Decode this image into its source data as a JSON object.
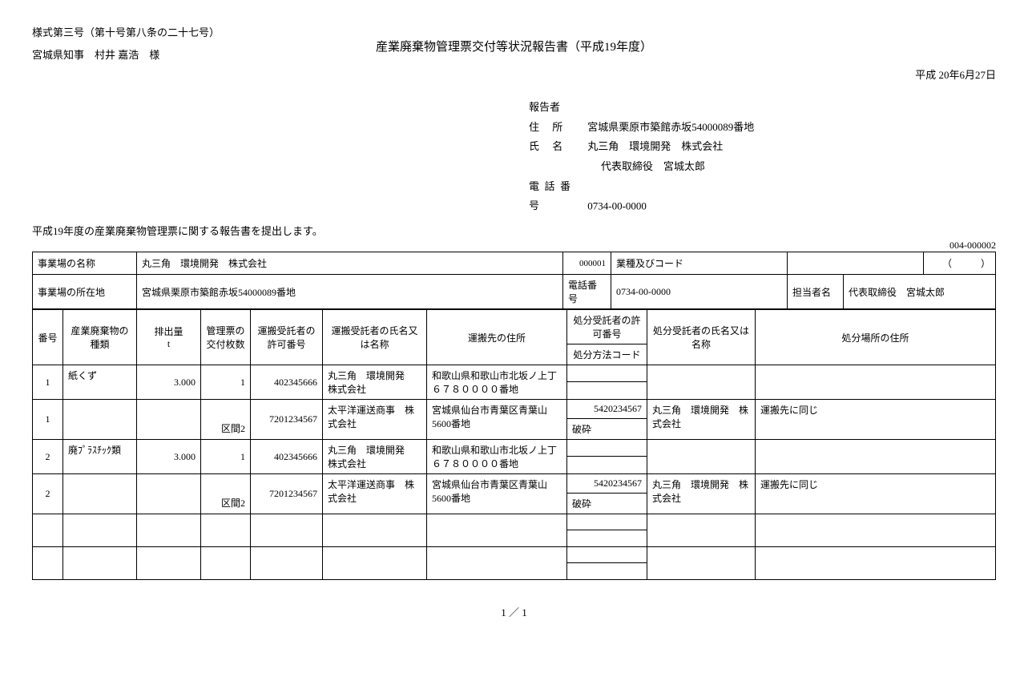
{
  "header": {
    "form_number": "様式第三号（第十号第八条の二十七号）",
    "title": "産業廃棄物管理票交付等状況報告書（平成19年度）",
    "addressee": "宮城県知事　村井 嘉浩　様",
    "date": "平成 20年6月27日"
  },
  "reporter": {
    "heading": "報告者",
    "address_label": "住 所",
    "address": "宮城県栗原市築館赤坂54000089番地",
    "name_label": "氏 名",
    "name": "丸三角　環境開発　株式会社",
    "rep_person": "代表取締役　宮城太郎",
    "tel_label": "電話番号",
    "tel": "0734-00-0000"
  },
  "statement": "平成19年度の産業廃棄物管理票に関する報告書を提出します。",
  "doc_id": "004-000002",
  "meta": {
    "site_name_label": "事業場の名称",
    "site_name": "丸三角　環境開発　株式会社",
    "site_code": "000001",
    "industry_label": "業種及びコード",
    "industry": "",
    "paren": "（　　　）",
    "site_addr_label": "事業場の所在地",
    "site_addr": "宮城県栗原市築館赤坂54000089番地",
    "tel_label": "電話番号",
    "tel": "0734-00-0000",
    "contact_label": "担当者名",
    "contact": "代表取締役　宮城太郎"
  },
  "columns": {
    "no": "番号",
    "waste_type": "産業廃棄物の種類",
    "emission": "排出量",
    "emission_unit": "t",
    "manifest": "管理票の交付枚数",
    "trans_permit": "運搬受託者の許可番号",
    "trans_name": "運搬受託者の氏名又は名称",
    "trans_dest": "運搬先の住所",
    "disp_permit": "処分受託者の許可番号",
    "disp_method": "処分方法コード",
    "disp_name": "処分受託者の氏名又は名称",
    "disp_addr": "処分場所の住所"
  },
  "rows": [
    {
      "no": "1",
      "waste_type": "紙くず",
      "emission": "3.000",
      "manifest": "1",
      "section": "",
      "trans_permit": "402345666",
      "trans_name": "丸三角　環境開発　株式会社",
      "trans_dest": "和歌山県和歌山市北坂ノ上丁６７８００００番地",
      "disp_permit": "",
      "disp_method": "",
      "disp_name": "",
      "disp_addr": ""
    },
    {
      "no": "1",
      "waste_type": "",
      "emission": "",
      "manifest": "",
      "section": "区間2",
      "trans_permit": "7201234567",
      "trans_name": "太平洋運送商事　株式会社",
      "trans_dest": "宮城県仙台市青葉区青葉山5600番地",
      "disp_permit": "5420234567",
      "disp_method": "破砕",
      "disp_name": "丸三角　環境開発　株式会社",
      "disp_addr": "運搬先に同じ"
    },
    {
      "no": "2",
      "waste_type": "廃ﾌﾟﾗｽﾁｯｸ類",
      "emission": "3.000",
      "manifest": "1",
      "section": "",
      "trans_permit": "402345666",
      "trans_name": "丸三角　環境開発　株式会社",
      "trans_dest": "和歌山県和歌山市北坂ノ上丁６７８００００番地",
      "disp_permit": "",
      "disp_method": "",
      "disp_name": "",
      "disp_addr": ""
    },
    {
      "no": "2",
      "waste_type": "",
      "emission": "",
      "manifest": "",
      "section": "区間2",
      "trans_permit": "7201234567",
      "trans_name": "太平洋運送商事　株式会社",
      "trans_dest": "宮城県仙台市青葉区青葉山5600番地",
      "disp_permit": "5420234567",
      "disp_method": "破砕",
      "disp_name": "丸三角　環境開発　株式会社",
      "disp_addr": "運搬先に同じ"
    },
    {
      "no": "",
      "waste_type": "",
      "emission": "",
      "manifest": "",
      "section": "",
      "trans_permit": "",
      "trans_name": "",
      "trans_dest": "",
      "disp_permit": "",
      "disp_method": "",
      "disp_name": "",
      "disp_addr": ""
    },
    {
      "no": "",
      "waste_type": "",
      "emission": "",
      "manifest": "",
      "section": "",
      "trans_permit": "",
      "trans_name": "",
      "trans_dest": "",
      "disp_permit": "",
      "disp_method": "",
      "disp_name": "",
      "disp_addr": ""
    }
  ],
  "footer": {
    "page": "1 ／ 1"
  }
}
